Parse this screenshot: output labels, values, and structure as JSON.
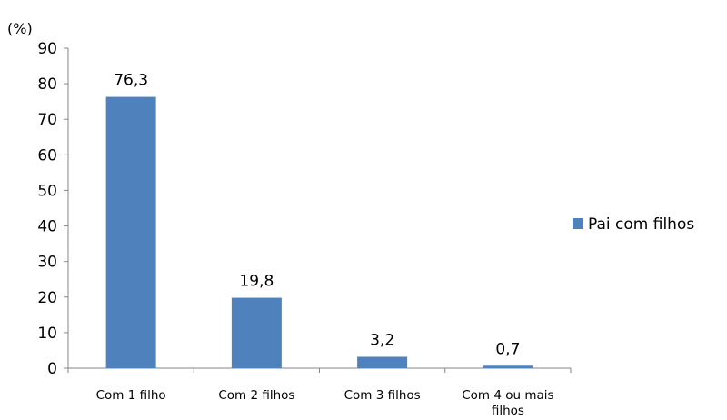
{
  "chart_data": {
    "type": "bar",
    "unit_label": "(%)",
    "categories": [
      "Com 1 filho",
      "Com 2 filhos",
      "Com 3 filhos",
      "Com 4 ou mais filhos"
    ],
    "series": [
      {
        "name": "Pai com filhos",
        "values": [
          76.3,
          19.8,
          3.2,
          0.7
        ],
        "labels": [
          "76,3",
          "19,8",
          "3,2",
          "0,7"
        ],
        "color": "#4f81bd"
      }
    ],
    "ylim": [
      0,
      90
    ],
    "yticks": [
      0,
      10,
      20,
      30,
      40,
      50,
      60,
      70,
      80,
      90
    ],
    "grid": false,
    "legend_position": "right"
  }
}
